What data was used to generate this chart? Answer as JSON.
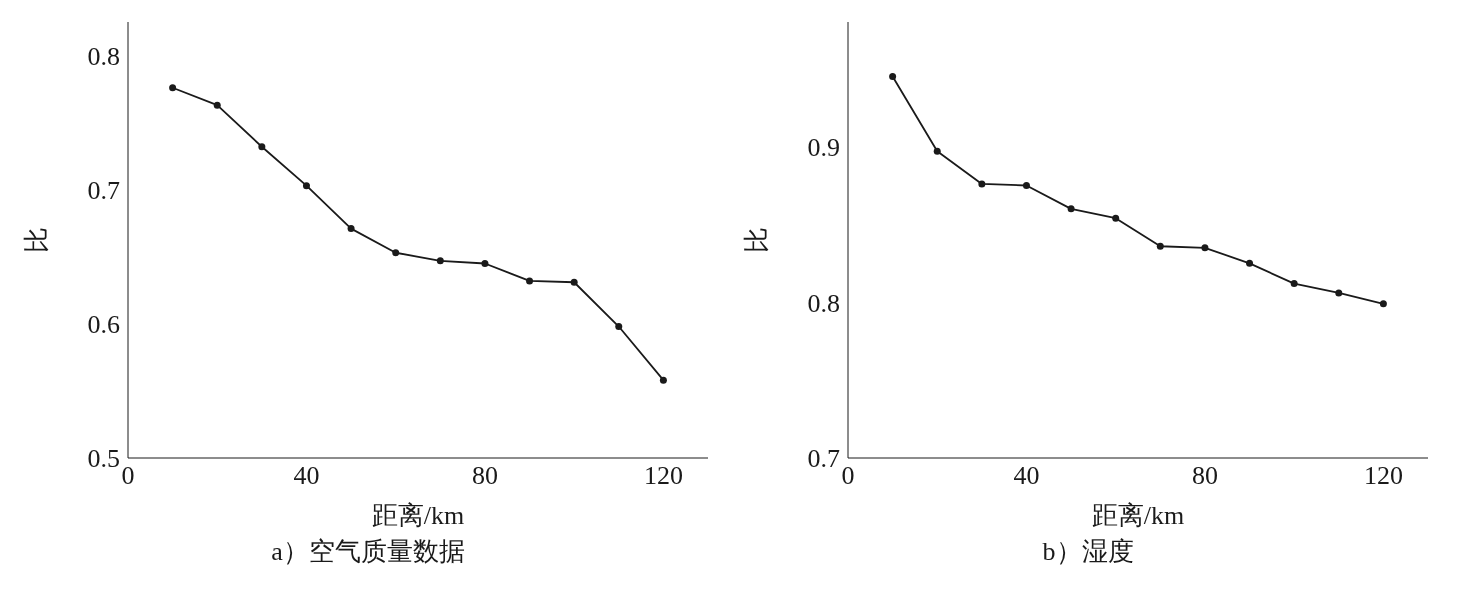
{
  "chart_data": [
    {
      "type": "line",
      "title": "a）空气质量数据",
      "xlabel": "距离/km",
      "ylabel": "比",
      "x": [
        10,
        20,
        30,
        40,
        50,
        60,
        70,
        80,
        90,
        100,
        110,
        120
      ],
      "xlim": [
        0,
        130
      ],
      "xticks": [
        0,
        40,
        80,
        120
      ],
      "ylim": [
        0.5,
        0.825
      ],
      "yticks": [
        0.5,
        0.6,
        0.7,
        0.8
      ],
      "marker": "circle",
      "series": [
        {
          "color": "#1a1a1a",
          "values": [
            0.776,
            0.763,
            0.732,
            0.703,
            0.671,
            0.653,
            0.647,
            0.645,
            0.632,
            0.631,
            0.598,
            0.558
          ]
        }
      ]
    },
    {
      "type": "line",
      "title": "b）湿度",
      "xlabel": "距离/km",
      "ylabel": "比",
      "x": [
        10,
        20,
        30,
        40,
        50,
        60,
        70,
        80,
        90,
        100,
        110,
        120
      ],
      "xlim": [
        0,
        130
      ],
      "xticks": [
        0,
        40,
        80,
        120
      ],
      "ylim": [
        0.7,
        0.98
      ],
      "yticks": [
        0.7,
        0.8,
        0.9
      ],
      "marker": "circle",
      "series": [
        {
          "color": "#1a1a1a",
          "values": [
            0.945,
            0.897,
            0.876,
            0.875,
            0.86,
            0.854,
            0.836,
            0.835,
            0.825,
            0.812,
            0.806,
            0.799
          ]
        }
      ]
    }
  ]
}
